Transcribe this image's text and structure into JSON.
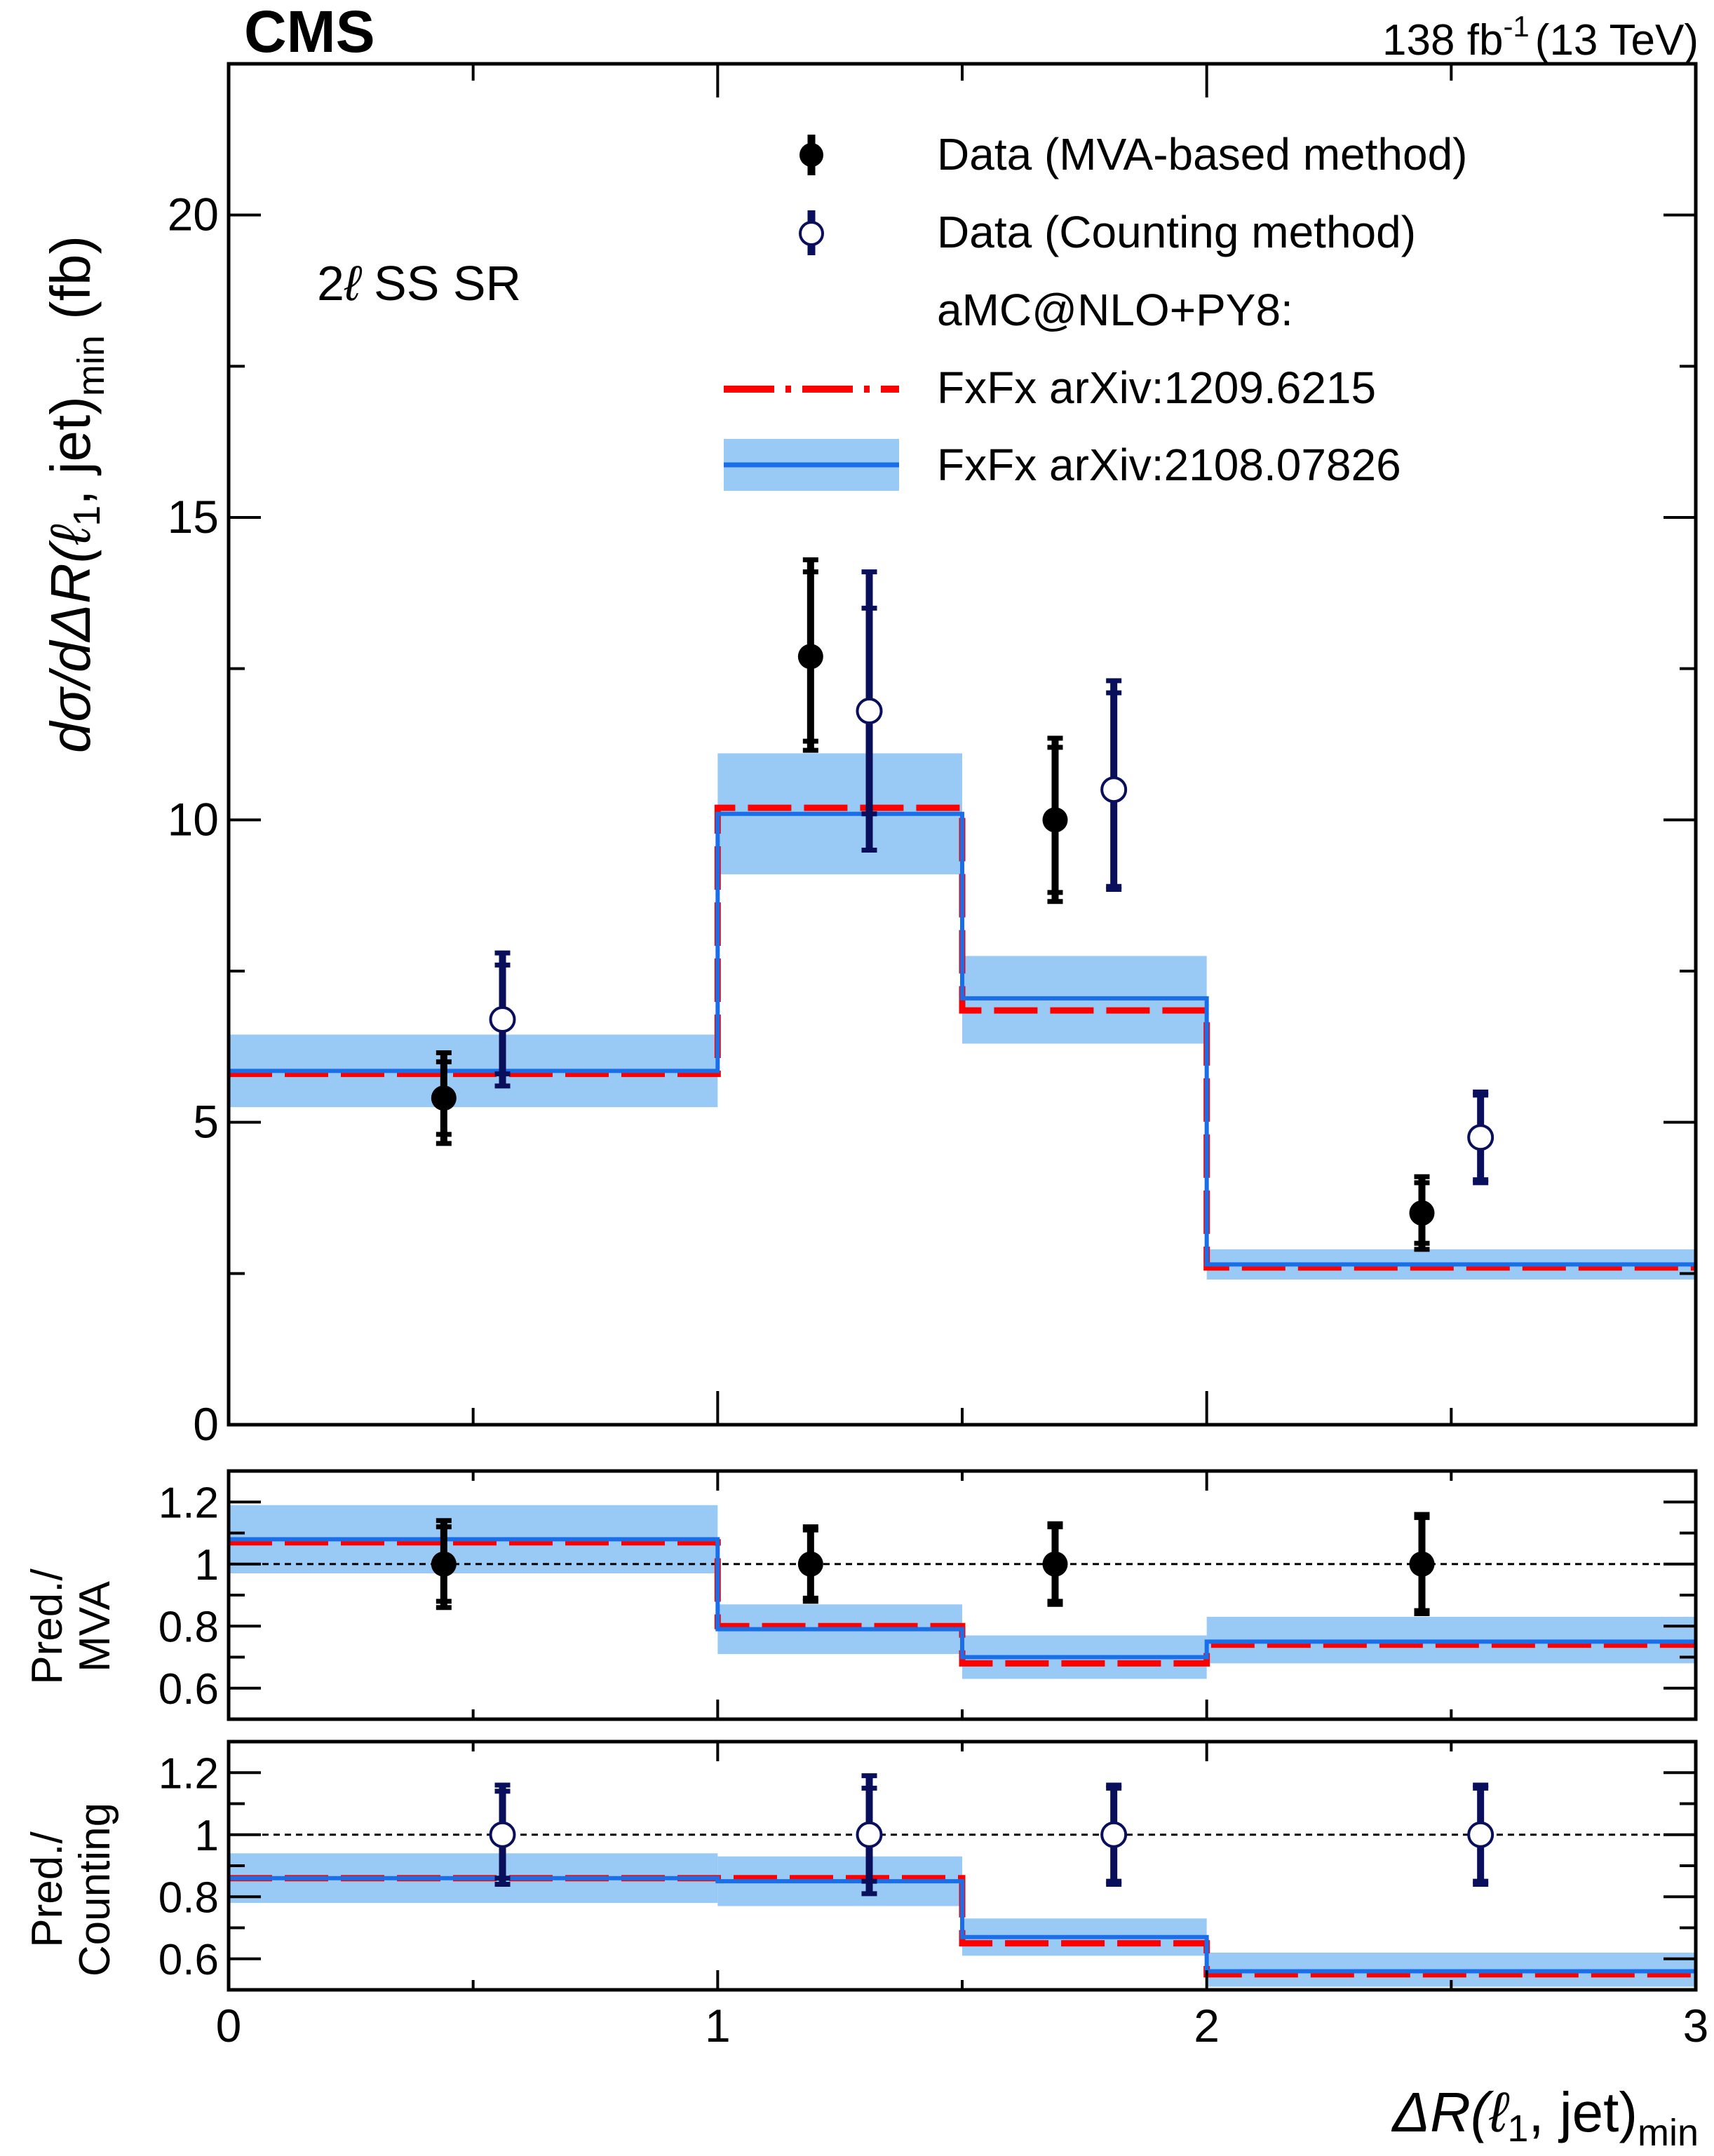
{
  "header": {
    "experiment": "CMS",
    "lumi_value": "138 fb",
    "lumi_exp": "-1",
    "energy": "(13 TeV)"
  },
  "region_label": {
    "prefix": "2",
    "ell": "ℓ",
    "suffix": " SS SR"
  },
  "legend": {
    "mva": "Data (MVA-based method)",
    "counting": "Data (Counting method)",
    "header": "aMC@NLO+PY8:",
    "fxfx_old": "FxFx arXiv:1209.6215",
    "fxfx_new": "FxFx arXiv:2108.07826"
  },
  "axes": {
    "ylabel_main": "dσ/dΔR(ℓ",
    "ylabel_main_sub": "1",
    "ylabel_main_rest": ", jet)",
    "ylabel_main_min": "min",
    "ylabel_main_unit": " (fb)",
    "ylabel_ratio1_line1": "Pred./",
    "ylabel_ratio1_line2": "MVA",
    "ylabel_ratio2_line1": "Pred./",
    "ylabel_ratio2_line2": "Counting",
    "xlabel": "ΔR(ℓ",
    "xlabel_sub": "1",
    "xlabel_rest": ", jet)",
    "xlabel_min": "min"
  },
  "colors": {
    "mva": "#000000",
    "counting": "#0a0f5c",
    "fxfx_old": "#ff0000",
    "fxfx_new": "#1a6fe8",
    "band": "#99caf5"
  },
  "chart_data": [
    {
      "panel": "main",
      "type": "histogram",
      "bin_edges": [
        0,
        1,
        1.5,
        2,
        3
      ],
      "xlim": [
        0,
        3
      ],
      "ylim": [
        0,
        22.5
      ],
      "yticks": [
        0,
        5,
        10,
        15,
        20
      ],
      "xticks": [
        0,
        1,
        2,
        3
      ],
      "data_mva": {
        "x": [
          0.44,
          1.19,
          1.69,
          2.44
        ],
        "y": [
          5.4,
          12.7,
          10.0,
          3.5
        ],
        "err_up": [
          0.75,
          1.6,
          1.35,
          0.6
        ],
        "err_down": [
          0.75,
          1.55,
          1.35,
          0.6
        ],
        "syst_up": [
          0.6,
          1.4,
          1.2,
          0.5
        ],
        "syst_down": [
          0.6,
          1.4,
          1.2,
          0.5
        ]
      },
      "data_counting": {
        "x": [
          0.56,
          1.31,
          1.81,
          2.56
        ],
        "y": [
          6.7,
          11.8,
          10.5,
          4.75
        ],
        "err_up": [
          1.1,
          2.3,
          1.8,
          0.75
        ],
        "err_down": [
          1.1,
          2.3,
          1.65,
          0.75
        ],
        "syst_up": [
          0.9,
          1.7,
          1.6,
          0.7
        ],
        "syst_down": [
          0.9,
          1.7,
          1.6,
          0.7
        ]
      },
      "fxfx_1209_6215": [
        5.8,
        10.2,
        6.85,
        2.6
      ],
      "fxfx_2108_07826": [
        5.85,
        10.1,
        7.05,
        2.65
      ],
      "fxfx_2108_07826_band": {
        "low": [
          5.25,
          9.1,
          6.3,
          2.4
        ],
        "high": [
          6.45,
          11.1,
          7.75,
          2.9
        ]
      }
    },
    {
      "panel": "ratio_mva",
      "type": "histogram",
      "bin_edges": [
        0,
        1,
        1.5,
        2,
        3
      ],
      "xlim": [
        0,
        3
      ],
      "ylim": [
        0.5,
        1.3
      ],
      "yticks": [
        0.6,
        0.8,
        1,
        1.2
      ],
      "reference": 1,
      "data": {
        "x": [
          0.44,
          1.19,
          1.69,
          2.44
        ],
        "y": [
          1,
          1,
          1,
          1
        ],
        "err_up": [
          0.14,
          0.12,
          0.13,
          0.16
        ],
        "err_down": [
          0.14,
          0.12,
          0.13,
          0.16
        ],
        "syst_up": [
          0.12,
          0.11,
          0.12,
          0.15
        ],
        "syst_down": [
          0.12,
          0.11,
          0.12,
          0.15
        ]
      },
      "fxfx_1209_6215": [
        1.07,
        0.8,
        0.68,
        0.74
      ],
      "fxfx_2108_07826": [
        1.08,
        0.79,
        0.7,
        0.75
      ],
      "fxfx_2108_07826_band": {
        "low": [
          0.97,
          0.71,
          0.63,
          0.68
        ],
        "high": [
          1.19,
          0.87,
          0.77,
          0.83
        ]
      }
    },
    {
      "panel": "ratio_counting",
      "type": "histogram",
      "bin_edges": [
        0,
        1,
        1.5,
        2,
        3
      ],
      "xlim": [
        0,
        3
      ],
      "ylim": [
        0.5,
        1.3
      ],
      "yticks": [
        0.6,
        0.8,
        1,
        1.2
      ],
      "reference": 1,
      "data": {
        "x": [
          0.56,
          1.31,
          1.81,
          2.56
        ],
        "y": [
          1,
          1,
          1,
          1
        ],
        "err_up": [
          0.16,
          0.19,
          0.16,
          0.16
        ],
        "err_down": [
          0.16,
          0.19,
          0.16,
          0.16
        ],
        "syst_up": [
          0.14,
          0.15,
          0.15,
          0.15
        ],
        "syst_down": [
          0.14,
          0.15,
          0.15,
          0.15
        ]
      },
      "fxfx_1209_6215": [
        0.86,
        0.86,
        0.65,
        0.55
      ],
      "fxfx_2108_07826": [
        0.86,
        0.85,
        0.67,
        0.56
      ],
      "fxfx_2108_07826_band": {
        "low": [
          0.78,
          0.77,
          0.61,
          0.51
        ],
        "high": [
          0.94,
          0.93,
          0.73,
          0.62
        ]
      }
    }
  ]
}
